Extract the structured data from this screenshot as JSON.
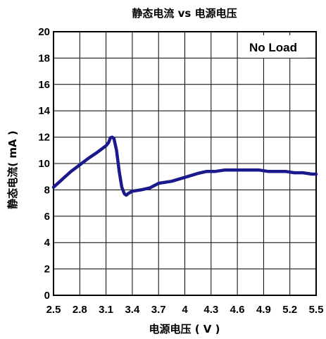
{
  "chart_data": {
    "type": "line",
    "title": "静态电流 vs 电源电压",
    "xlabel": "电源电压 ( V )",
    "ylabel": "静态电流( mA )",
    "xlim": [
      2.5,
      5.5
    ],
    "ylim": [
      0,
      20
    ],
    "xticks": [
      "2.5",
      "2.8",
      "3.1",
      "3.4",
      "3.7",
      "4",
      "4.3",
      "4.6",
      "4.9",
      "5.2",
      "5.5"
    ],
    "yticks": [
      "0",
      "2",
      "4",
      "6",
      "8",
      "10",
      "12",
      "14",
      "16",
      "18",
      "20"
    ],
    "grid": true,
    "annotation": "No Load",
    "annotation_position": "top-right",
    "series_color": "#1a1a8c",
    "series": [
      {
        "x": [
          2.5,
          2.6,
          2.7,
          2.8,
          2.9,
          3.0,
          3.1,
          3.13,
          3.15,
          3.17,
          3.19,
          3.22,
          3.25,
          3.28,
          3.31,
          3.33,
          3.36,
          3.4,
          3.5,
          3.6,
          3.7,
          3.75,
          3.85,
          3.95,
          4.05,
          4.15,
          4.25,
          4.35,
          4.45,
          4.55,
          4.65,
          4.75,
          4.85,
          4.95,
          5.05,
          5.15,
          5.25,
          5.35,
          5.45,
          5.5
        ],
        "y": [
          8.2,
          8.8,
          9.4,
          9.9,
          10.4,
          10.85,
          11.35,
          11.6,
          11.95,
          12.0,
          11.9,
          11.0,
          9.4,
          8.2,
          7.7,
          7.6,
          7.75,
          7.9,
          8.0,
          8.15,
          8.5,
          8.55,
          8.65,
          8.85,
          9.05,
          9.25,
          9.4,
          9.4,
          9.5,
          9.5,
          9.5,
          9.5,
          9.5,
          9.4,
          9.4,
          9.4,
          9.3,
          9.3,
          9.2,
          9.2
        ]
      }
    ]
  }
}
